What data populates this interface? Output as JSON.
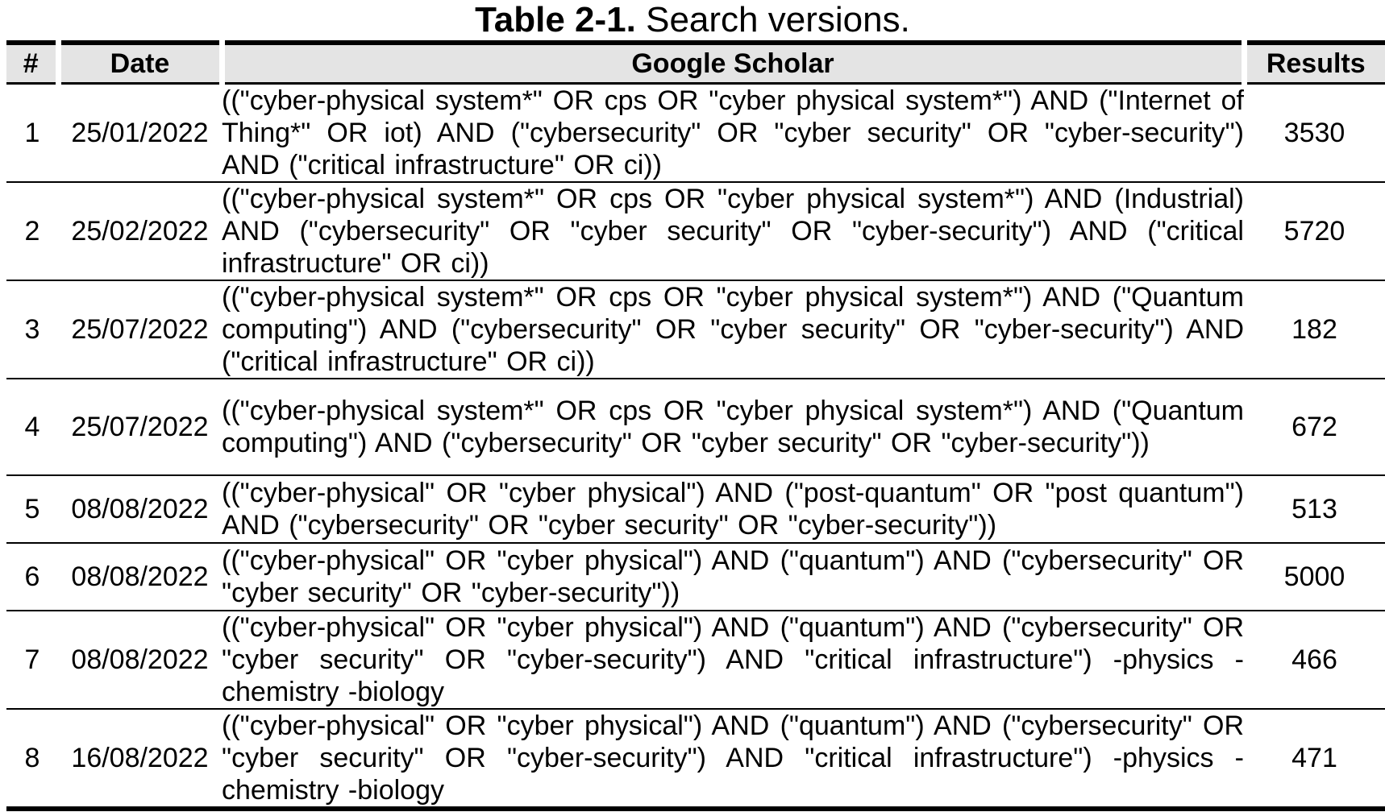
{
  "caption": {
    "label": "Table 2-1.",
    "title": "Search versions."
  },
  "table": {
    "headers": [
      "#",
      "Date",
      "Google Scholar",
      "Results"
    ],
    "rows": [
      {
        "num": "1",
        "date": "25/01/2022",
        "query": "((\"cyber-physical system*\" OR cps OR \"cyber physical system*\") AND (\"Internet of Thing*\" OR iot) AND (\"cybersecurity\" OR \"cyber security\" OR \"cyber-security\") AND (\"critical infrastructure\" OR ci))",
        "results": "3530"
      },
      {
        "num": "2",
        "date": "25/02/2022",
        "query": "((\"cyber-physical system*\" OR cps OR \"cyber physical system*\") AND (Industrial) AND (\"cybersecurity\" OR \"cyber security\" OR \"cyber-security\") AND (\"critical infrastructure\" OR ci))",
        "results": "5720"
      },
      {
        "num": "3",
        "date": "25/07/2022",
        "query": "((\"cyber-physical system*\" OR cps OR \"cyber physical system*\") AND (\"Quantum computing\") AND (\"cybersecurity\" OR \"cyber security\" OR \"cyber-security\") AND (\"critical infrastructure\" OR ci))",
        "results": "182"
      },
      {
        "num": "4",
        "date": "25/07/2022",
        "query": "((\"cyber-physical system*\" OR cps OR \"cyber physical system*\") AND (\"Quantum computing\") AND (\"cybersecurity\" OR \"cyber security\" OR \"cyber-security\"))",
        "results": "672"
      },
      {
        "num": "5",
        "date": "08/08/2022",
        "query": "((\"cyber-physical\" OR \"cyber physical\") AND (\"post-quantum\" OR \"post quantum\") AND (\"cybersecurity\" OR \"cyber security\" OR \"cyber-security\"))",
        "results": "513"
      },
      {
        "num": "6",
        "date": "08/08/2022",
        "query": "((\"cyber-physical\" OR \"cyber physical\") AND (\"quantum\") AND (\"cybersecurity\" OR \"cyber security\" OR \"cyber-security\"))",
        "results": "5000"
      },
      {
        "num": "7",
        "date": "08/08/2022",
        "query": "((\"cyber-physical\" OR \"cyber physical\") AND (\"quantum\") AND (\"cybersecurity\" OR \"cyber security\" OR \"cyber-security\") AND \"critical infrastructure\") -physics -chemistry -biology",
        "results": "466"
      },
      {
        "num": "8",
        "date": "16/08/2022",
        "query": "((\"cyber-physical\" OR \"cyber physical\") AND (\"quantum\") AND (\"cybersecurity\" OR \"cyber security\" OR \"cyber-security\") AND \"critical infrastructure\") -physics -chemistry -biology",
        "results": "471"
      }
    ]
  }
}
